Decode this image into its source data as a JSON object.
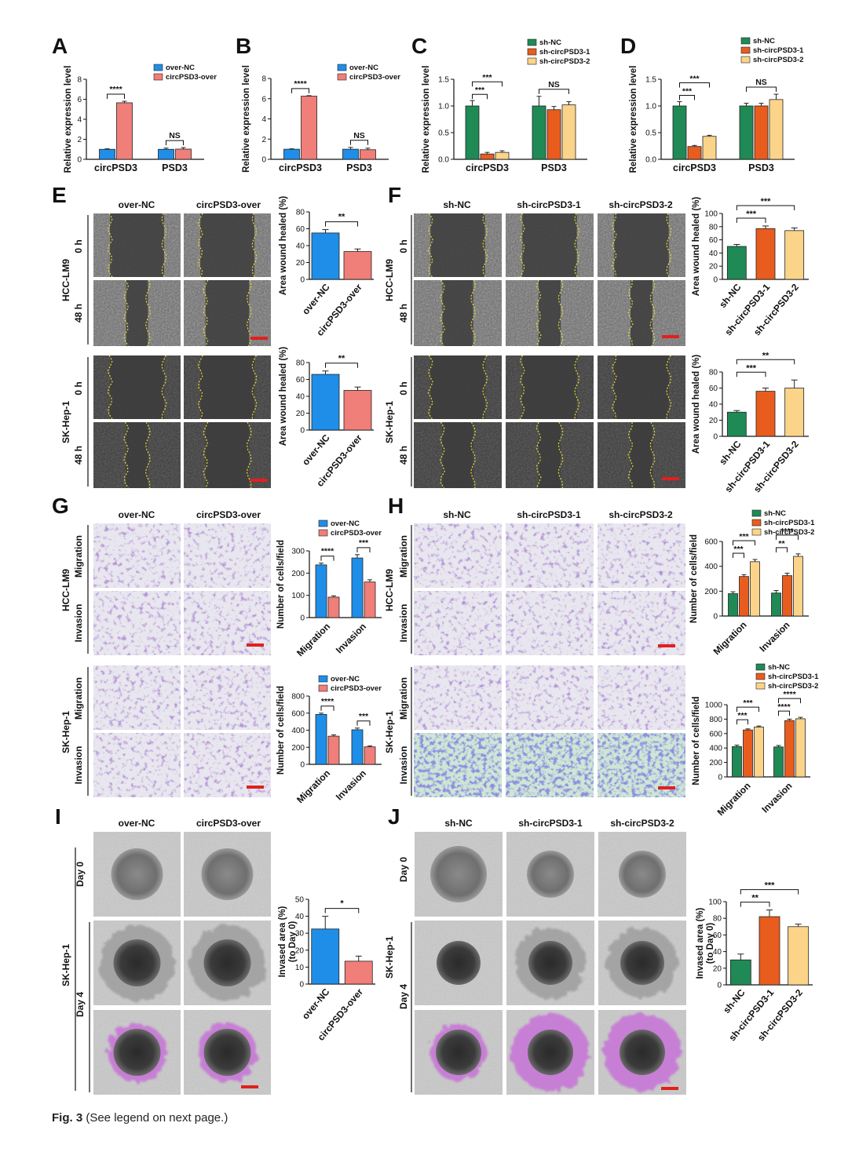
{
  "colors": {
    "blue": "#1f8ee8",
    "salmon": "#f07e79",
    "green": "#1f8a55",
    "orange": "#e85c1e",
    "yellow": "#fbd48a",
    "wound_line": "#e8e030",
    "stain": "#6b3fa8",
    "stain_blue": "#3c3ec0",
    "purple_overlay": "#c77bd6"
  },
  "caption": {
    "label": "Fig. 3",
    "text": "(See legend on next page.)"
  },
  "micro": {
    "E": {
      "conditions": [
        "over-NC",
        "circPSD3-over"
      ],
      "groups": [
        {
          "cell": "HCC-LM9",
          "rows": [
            "0 h",
            "48 h"
          ]
        },
        {
          "cell": "SK-Hep-1",
          "rows": [
            "0 h",
            "48 h"
          ]
        }
      ]
    },
    "F": {
      "conditions": [
        "sh-NC",
        "sh-circPSD3-1",
        "sh-circPSD3-2"
      ],
      "groups": [
        {
          "cell": "HCC-LM9",
          "rows": [
            "0 h",
            "48 h"
          ]
        },
        {
          "cell": "SK-Hep-1",
          "rows": [
            "0 h",
            "48 h"
          ]
        }
      ]
    },
    "G": {
      "conditions": [
        "over-NC",
        "circPSD3-over"
      ],
      "groups": [
        {
          "cell": "HCC-LM9",
          "rows": [
            "Migration",
            "Invasion"
          ]
        },
        {
          "cell": "SK-Hep-1",
          "rows": [
            "Migration",
            "Invasion"
          ]
        }
      ]
    },
    "H": {
      "conditions": [
        "sh-NC",
        "sh-circPSD3-1",
        "sh-circPSD3-2"
      ],
      "groups": [
        {
          "cell": "HCC-LM9",
          "rows": [
            "Migration",
            "Invasion"
          ]
        },
        {
          "cell": "SK-Hep-1",
          "rows": [
            "Migration",
            "Invasion"
          ]
        }
      ]
    },
    "I": {
      "conditions": [
        "over-NC",
        "circPSD3-over"
      ],
      "cell": "SK-Hep-1",
      "days": [
        "Day 0",
        "Day 4"
      ]
    },
    "J": {
      "conditions": [
        "sh-NC",
        "sh-circPSD3-1",
        "sh-circPSD3-2"
      ],
      "cell": "SK-Hep-1",
      "days": [
        "Day 0",
        "Day 4"
      ]
    }
  },
  "chart_data": [
    {
      "id": "A",
      "panel_label": "A",
      "type": "bar",
      "ylabel": "Relative expression level",
      "ylim": [
        0,
        8
      ],
      "yticks": [
        0,
        2,
        4,
        6,
        8
      ],
      "categories": [
        "circPSD3",
        "PSD3"
      ],
      "legend": "top",
      "series": [
        {
          "name": "over-NC",
          "values": [
            1.0,
            1.0
          ],
          "errors": [
            0.05,
            0.12
          ]
        },
        {
          "name": "circPSD3-over",
          "values": [
            5.65,
            1.02
          ],
          "errors": [
            0.15,
            0.15
          ]
        }
      ],
      "significance": [
        "****",
        "NS"
      ]
    },
    {
      "id": "B",
      "panel_label": "B",
      "type": "bar",
      "ylabel": "Relative expression level",
      "ylim": [
        0,
        8
      ],
      "yticks": [
        0,
        2,
        4,
        6,
        8
      ],
      "categories": [
        "circPSD3",
        "PSD3"
      ],
      "legend": "top",
      "series": [
        {
          "name": "over-NC",
          "values": [
            1.0,
            1.0
          ],
          "errors": [
            0.04,
            0.18
          ]
        },
        {
          "name": "circPSD3-over",
          "values": [
            6.25,
            0.95
          ],
          "errors": [
            0.05,
            0.15
          ]
        }
      ],
      "significance": [
        "****",
        "NS"
      ]
    },
    {
      "id": "C",
      "panel_label": "C",
      "type": "bar",
      "ylabel": "Relative expression level",
      "ylim": [
        0,
        1.5
      ],
      "yticks": [
        0.0,
        0.5,
        1.0,
        1.5
      ],
      "categories": [
        "circPSD3",
        "PSD3"
      ],
      "legend": "top",
      "series": [
        {
          "name": "sh-NC",
          "values": [
            1.0,
            1.0
          ],
          "errors": [
            0.1,
            0.18
          ]
        },
        {
          "name": "sh-circPSD3-1",
          "values": [
            0.1,
            0.93
          ],
          "errors": [
            0.03,
            0.06
          ]
        },
        {
          "name": "sh-circPSD3-2",
          "values": [
            0.13,
            1.02
          ],
          "errors": [
            0.03,
            0.06
          ]
        }
      ],
      "significance": [
        [
          "***",
          "***"
        ],
        "NS"
      ]
    },
    {
      "id": "D",
      "panel_label": "D",
      "type": "bar",
      "ylabel": "Relative expression level",
      "ylim": [
        0,
        1.5
      ],
      "yticks": [
        0.0,
        0.5,
        1.0,
        1.5
      ],
      "categories": [
        "circPSD3",
        "PSD3"
      ],
      "legend": "top",
      "series": [
        {
          "name": "sh-NC",
          "values": [
            1.0,
            1.0
          ],
          "errors": [
            0.08,
            0.05
          ]
        },
        {
          "name": "sh-circPSD3-1",
          "values": [
            0.24,
            1.0
          ],
          "errors": [
            0.02,
            0.05
          ]
        },
        {
          "name": "sh-circPSD3-2",
          "values": [
            0.43,
            1.12
          ],
          "errors": [
            0.02,
            0.1
          ]
        }
      ],
      "significance": [
        [
          "***",
          "***"
        ],
        "NS"
      ]
    },
    {
      "id": "E1",
      "type": "bar",
      "ylabel": "Area wound healed (%)",
      "ylim": [
        0,
        80
      ],
      "yticks": [
        0,
        20,
        40,
        60,
        80
      ],
      "categories": [
        "over-NC",
        "circPSD3-over"
      ],
      "values": [
        55,
        33
      ],
      "errors": [
        4,
        3
      ],
      "significance": "**"
    },
    {
      "id": "E2",
      "type": "bar",
      "ylabel": "Area wound healed (%)",
      "ylim": [
        0,
        80
      ],
      "yticks": [
        0,
        20,
        40,
        60,
        80
      ],
      "categories": [
        "over-NC",
        "circPSD3-over"
      ],
      "values": [
        66,
        47
      ],
      "errors": [
        4,
        4
      ],
      "significance": "**"
    },
    {
      "id": "F1",
      "type": "bar",
      "ylabel": "Area wound healed (%)",
      "ylim": [
        0,
        100
      ],
      "yticks": [
        0,
        20,
        40,
        60,
        80,
        100
      ],
      "categories": [
        "sh-NC",
        "sh-circPSD3-1",
        "sh-circPSD3-2"
      ],
      "values": [
        50,
        77,
        74
      ],
      "errors": [
        3,
        4,
        4
      ],
      "significance": [
        "***",
        "***"
      ]
    },
    {
      "id": "F2",
      "type": "bar",
      "ylabel": "Area wound healed (%)",
      "ylim": [
        0,
        80
      ],
      "yticks": [
        0,
        20,
        40,
        60,
        80
      ],
      "categories": [
        "sh-NC",
        "sh-circPSD3-1",
        "sh-circPSD3-2"
      ],
      "values": [
        30,
        56,
        60
      ],
      "errors": [
        2,
        4,
        10
      ],
      "significance": [
        "***",
        "**"
      ]
    },
    {
      "id": "G1",
      "type": "bar",
      "ylabel": "Number of cells/field",
      "ylim": [
        0,
        300
      ],
      "yticks": [
        0,
        100,
        200,
        300
      ],
      "categories": [
        "Migration",
        "Invasion"
      ],
      "legend": "top",
      "series": [
        {
          "name": "over-NC",
          "values": [
            237,
            268
          ],
          "errors": [
            8,
            15
          ]
        },
        {
          "name": "circPSD3-over",
          "values": [
            92,
            160
          ],
          "errors": [
            6,
            10
          ]
        }
      ],
      "significance": [
        "****",
        "***"
      ]
    },
    {
      "id": "G2",
      "type": "bar",
      "ylabel": "Number of cells/field",
      "ylim": [
        0,
        800
      ],
      "yticks": [
        0,
        200,
        400,
        600,
        800
      ],
      "categories": [
        "Migration",
        "Invasion"
      ],
      "legend": "top",
      "series": [
        {
          "name": "over-NC",
          "values": [
            585,
            405
          ],
          "errors": [
            15,
            20
          ]
        },
        {
          "name": "circPSD3-over",
          "values": [
            330,
            205
          ],
          "errors": [
            15,
            10
          ]
        }
      ],
      "significance": [
        "****",
        "***"
      ]
    },
    {
      "id": "H1",
      "type": "bar",
      "ylabel": "Number of cells/field",
      "ylim": [
        0,
        600
      ],
      "yticks": [
        0,
        200,
        400,
        600
      ],
      "categories": [
        "Migration",
        "Invasion"
      ],
      "legend": "top",
      "series": [
        {
          "name": "sh-NC",
          "values": [
            180,
            185
          ],
          "errors": [
            15,
            20
          ]
        },
        {
          "name": "sh-circPSD3-1",
          "values": [
            318,
            325
          ],
          "errors": [
            15,
            20
          ]
        },
        {
          "name": "sh-circPSD3-2",
          "values": [
            437,
            480
          ],
          "errors": [
            18,
            20
          ]
        }
      ],
      "significance": [
        [
          "***",
          "***"
        ],
        [
          "**",
          "****"
        ]
      ]
    },
    {
      "id": "H2",
      "type": "bar",
      "ylabel": "Number of cells/field",
      "ylim": [
        0,
        1000
      ],
      "yticks": [
        0,
        200,
        400,
        600,
        800,
        1000
      ],
      "categories": [
        "Migration",
        "Invasion"
      ],
      "legend": "top",
      "series": [
        {
          "name": "sh-NC",
          "values": [
            420,
            415
          ],
          "errors": [
            20,
            20
          ]
        },
        {
          "name": "sh-circPSD3-1",
          "values": [
            650,
            780
          ],
          "errors": [
            15,
            20
          ]
        },
        {
          "name": "sh-circPSD3-2",
          "values": [
            690,
            805
          ],
          "errors": [
            15,
            20
          ]
        }
      ],
      "significance": [
        [
          "***",
          "***"
        ],
        [
          "****",
          "****"
        ]
      ]
    },
    {
      "id": "I1",
      "type": "bar",
      "ylabel": "Invased area (%)",
      "ylabel2": "(to Day 0)",
      "ylim": [
        0,
        50
      ],
      "yticks": [
        0,
        10,
        20,
        30,
        40,
        50
      ],
      "categories": [
        "over-NC",
        "circPSD3-over"
      ],
      "values": [
        32.5,
        13.5
      ],
      "errors": [
        7.5,
        3.0
      ],
      "significance": "*"
    },
    {
      "id": "J1",
      "type": "bar",
      "ylabel": "Invased area (%)",
      "ylabel2": "(to Day 0)",
      "ylim": [
        0,
        100
      ],
      "yticks": [
        0,
        20,
        40,
        60,
        80,
        100
      ],
      "categories": [
        "sh-NC",
        "sh-circPSD3-1",
        "sh-circPSD3-2"
      ],
      "values": [
        30,
        82,
        70
      ],
      "errors": [
        7,
        8,
        3
      ],
      "significance": [
        "**",
        "***"
      ]
    }
  ]
}
